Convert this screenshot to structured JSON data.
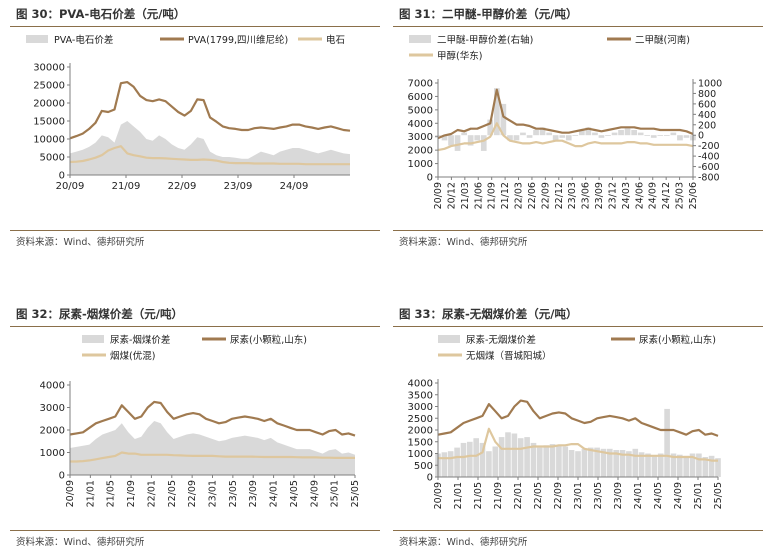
{
  "charts": [
    {
      "id": "c1",
      "title": "图 30：PVA-电石价差（元/吨）",
      "source": "资料来源：Wind、德邦研究所",
      "type": "area+line",
      "left": {
        "min": 0,
        "max": 30000,
        "ticks": [
          0,
          5000,
          10000,
          15000,
          20000,
          25000,
          30000
        ]
      },
      "right": null,
      "xticks": [
        "20/09",
        "21/09",
        "22/09",
        "23/09",
        "24/09"
      ],
      "xrotate": false,
      "legend": [
        {
          "label": "PVA-电石价差",
          "kind": "area",
          "series": "spread"
        },
        {
          "label": "PVA(1799,四川维尼纶)",
          "kind": "line",
          "series": "main"
        },
        {
          "label": "电石",
          "kind": "line",
          "series": "base"
        }
      ],
      "series": {
        "main": [
          10200,
          10800,
          11500,
          12800,
          14500,
          17800,
          17500,
          18200,
          25500,
          25800,
          24500,
          22000,
          20800,
          20500,
          21000,
          20500,
          19000,
          17500,
          16500,
          17800,
          21000,
          20800,
          16000,
          14800,
          13500,
          13000,
          12800,
          12500,
          12500,
          13000,
          13200,
          13000,
          12800,
          13200,
          13500,
          14000,
          14000,
          13500,
          13200,
          12800,
          13200,
          13500,
          13000,
          12500,
          12300
        ],
        "spread": [
          6000,
          6500,
          7000,
          7800,
          9000,
          11000,
          10500,
          9000,
          14000,
          15000,
          13500,
          12000,
          10000,
          9500,
          11000,
          10000,
          8500,
          7500,
          7000,
          8500,
          10500,
          10000,
          6500,
          5500,
          5000,
          5000,
          4800,
          4500,
          4500,
          5500,
          6500,
          6000,
          5500,
          6500,
          7000,
          7500,
          7500,
          7000,
          6500,
          6000,
          6500,
          7000,
          6500,
          6000,
          5800
        ],
        "base": [
          3600,
          3700,
          3900,
          4300,
          4800,
          5500,
          6800,
          7500,
          8000,
          6000,
          5500,
          5200,
          4800,
          4700,
          4700,
          4600,
          4500,
          4400,
          4300,
          4200,
          4200,
          4300,
          4200,
          4000,
          3600,
          3400,
          3300,
          3300,
          3300,
          3200,
          3200,
          3200,
          3200,
          3100,
          3100,
          3100,
          3100,
          3000,
          3000,
          3000,
          3000,
          3000,
          3000,
          3000,
          3000
        ]
      }
    },
    {
      "id": "c2",
      "title": "图 31：二甲醚-甲醇价差（元/吨）",
      "source": "资料来源：Wind、德邦研究所",
      "type": "bar+line",
      "left": {
        "min": 0,
        "max": 7000,
        "ticks": [
          0,
          1000,
          2000,
          3000,
          4000,
          5000,
          6000,
          7000
        ]
      },
      "right": {
        "min": -800,
        "max": 1000,
        "ticks": [
          -800,
          -600,
          -400,
          -200,
          0,
          200,
          400,
          600,
          800,
          1000
        ]
      },
      "xticks": [
        "20/09",
        "20/12",
        "21/03",
        "21/06",
        "21/09",
        "21/12",
        "22/03",
        "22/06",
        "22/09",
        "22/12",
        "23/03",
        "23/06",
        "23/09",
        "23/12",
        "24/03",
        "24/06",
        "24/09",
        "24/12",
        "25/03",
        "25/06"
      ],
      "xrotate": true,
      "legend": [
        {
          "label": "二甲醚-甲醇价差(右轴)",
          "kind": "area",
          "series": "spread"
        },
        {
          "label": "二甲醚(河南)",
          "kind": "line",
          "series": "main"
        },
        {
          "label": "甲醇(华东)",
          "kind": "line",
          "series": "base"
        }
      ],
      "series": {
        "main": [
          2900,
          3100,
          3200,
          3500,
          3400,
          3600,
          3600,
          3800,
          4000,
          6500,
          4500,
          4200,
          3900,
          3900,
          3800,
          3600,
          3600,
          3500,
          3400,
          3300,
          3300,
          3400,
          3500,
          3600,
          3500,
          3400,
          3500,
          3600,
          3700,
          3700,
          3700,
          3600,
          3600,
          3600,
          3500,
          3500,
          3500,
          3500,
          3400,
          3200
        ],
        "spread": [
          0,
          -100,
          -200,
          -300,
          50,
          -200,
          -100,
          -300,
          300,
          900,
          600,
          -100,
          -100,
          50,
          -50,
          100,
          150,
          50,
          -100,
          -50,
          -100,
          0,
          100,
          150,
          50,
          -50,
          0,
          50,
          100,
          150,
          100,
          50,
          0,
          -50,
          0,
          0,
          50,
          -100,
          -50,
          -100
        ],
        "base": [
          2000,
          2100,
          2300,
          2400,
          2500,
          2500,
          2600,
          2700,
          3000,
          4000,
          3100,
          2700,
          2600,
          2500,
          2500,
          2600,
          2500,
          2600,
          2700,
          2700,
          2500,
          2300,
          2300,
          2500,
          2600,
          2500,
          2500,
          2500,
          2500,
          2600,
          2600,
          2500,
          2500,
          2400,
          2400,
          2400,
          2400,
          2400,
          2400,
          2300
        ]
      }
    },
    {
      "id": "c3",
      "title": "图 32：尿素-烟煤价差（元/吨）",
      "source": "资料来源：Wind、德邦研究所",
      "type": "area+line",
      "left": {
        "min": 0,
        "max": 4000,
        "ticks": [
          0,
          1000,
          2000,
          3000,
          4000
        ]
      },
      "right": null,
      "xticks": [
        "20/09",
        "21/01",
        "21/05",
        "21/09",
        "22/01",
        "22/05",
        "22/09",
        "23/01",
        "23/05",
        "23/09",
        "24/01",
        "24/05",
        "24/09",
        "25/01",
        "25/05"
      ],
      "xrotate": true,
      "legend": [
        {
          "label": "尿素-烟煤价差",
          "kind": "area",
          "series": "spread"
        },
        {
          "label": "尿素(小颗粒,山东)",
          "kind": "line",
          "series": "main"
        },
        {
          "label": "烟煤(优混)",
          "kind": "line",
          "series": "base"
        }
      ],
      "series": {
        "main": [
          1800,
          1850,
          1900,
          2100,
          2300,
          2400,
          2500,
          2600,
          3100,
          2800,
          2500,
          2600,
          3000,
          3250,
          3200,
          2800,
          2500,
          2600,
          2700,
          2750,
          2700,
          2500,
          2400,
          2300,
          2350,
          2500,
          2550,
          2600,
          2550,
          2500,
          2400,
          2500,
          2300,
          2200,
          2100,
          2000,
          2000,
          2000,
          1900,
          1800,
          1950,
          2000,
          1800,
          1850,
          1750
        ],
        "spread": [
          1200,
          1250,
          1300,
          1350,
          1600,
          1800,
          1900,
          2000,
          2300,
          1900,
          1600,
          1700,
          2100,
          2400,
          2300,
          1900,
          1600,
          1700,
          1800,
          1850,
          1800,
          1700,
          1600,
          1500,
          1550,
          1650,
          1700,
          1750,
          1700,
          1650,
          1550,
          1650,
          1450,
          1350,
          1250,
          1150,
          1150,
          1150,
          1050,
          950,
          1100,
          1150,
          950,
          1000,
          900
        ],
        "base": [
          600,
          600,
          620,
          650,
          700,
          750,
          800,
          850,
          1000,
          950,
          950,
          900,
          900,
          900,
          900,
          900,
          880,
          870,
          860,
          850,
          850,
          850,
          850,
          830,
          820,
          820,
          820,
          820,
          820,
          810,
          800,
          800,
          800,
          800,
          800,
          790,
          780,
          780,
          780,
          770,
          770,
          760,
          760,
          760,
          760
        ]
      }
    },
    {
      "id": "c4",
      "title": "图 33：尿素-无烟煤价差（元/吨）",
      "source": "资料来源：Wind、德邦研究所",
      "type": "bar+line",
      "left": {
        "min": 0,
        "max": 4000,
        "ticks": [
          0,
          500,
          1000,
          1500,
          2000,
          2500,
          3000,
          3500,
          4000
        ]
      },
      "right": null,
      "xticks": [
        "20/09",
        "21/01",
        "21/05",
        "21/09",
        "22/01",
        "22/05",
        "22/09",
        "23/01",
        "23/05",
        "23/09",
        "24/01",
        "24/05",
        "24/09",
        "25/01",
        "25/05"
      ],
      "xrotate": true,
      "legend": [
        {
          "label": "尿素-无烟煤价差",
          "kind": "area",
          "series": "spread"
        },
        {
          "label": "尿素(小颗粒,山东)",
          "kind": "line",
          "series": "main"
        },
        {
          "label": "无烟煤（晋城阳城）",
          "kind": "line",
          "series": "base"
        }
      ],
      "series": {
        "main": [
          1800,
          1850,
          1900,
          2100,
          2300,
          2400,
          2500,
          2600,
          3100,
          2800,
          2500,
          2600,
          3000,
          3250,
          3200,
          2800,
          2500,
          2600,
          2700,
          2750,
          2700,
          2500,
          2400,
          2300,
          2350,
          2500,
          2550,
          2600,
          2550,
          2500,
          2400,
          2500,
          2300,
          2200,
          2100,
          2000,
          2000,
          2000,
          1900,
          1800,
          1950,
          2000,
          1800,
          1850,
          1750
        ],
        "spread": [
          1000,
          1050,
          1100,
          1250,
          1450,
          1500,
          1650,
          1450,
          1100,
          1300,
          1700,
          1900,
          1850,
          1650,
          1700,
          1450,
          1250,
          1350,
          1400,
          1350,
          1300,
          1150,
          1100,
          1200,
          1250,
          1250,
          1200,
          1200,
          1150,
          1150,
          1100,
          1200,
          1050,
          1000,
          900,
          1000,
          2900,
          1000,
          950,
          900,
          1000,
          1000,
          850,
          900,
          800
        ],
        "base": [
          800,
          800,
          800,
          850,
          850,
          900,
          900,
          1050,
          2050,
          1500,
          1200,
          1200,
          1200,
          1200,
          1250,
          1300,
          1300,
          1300,
          1300,
          1350,
          1350,
          1400,
          1400,
          1200,
          1150,
          1100,
          1050,
          1000,
          1000,
          950,
          950,
          900,
          900,
          900,
          900,
          900,
          900,
          850,
          850,
          850,
          850,
          750,
          750,
          700,
          700
        ]
      }
    }
  ]
}
